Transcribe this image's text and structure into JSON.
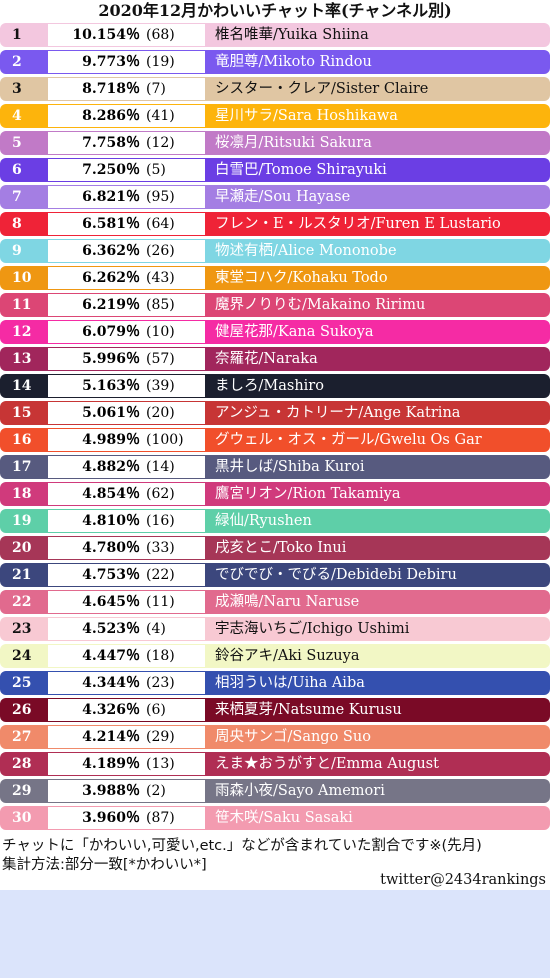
{
  "chart_data": {
    "type": "table",
    "title": "2020年12月かわいいチャット率(チャンネル別)",
    "columns": [
      "rank",
      "percent",
      "count",
      "name"
    ],
    "rows": [
      {
        "rank": "1",
        "percent": "10.154％",
        "count": "(68)",
        "name": "椎名唯華/Yuika Shiina",
        "bg": "#f3c7df",
        "fg": "#111111"
      },
      {
        "rank": "2",
        "percent": "9.773％",
        "count": "(19)",
        "name": "竜胆尊/Mikoto Rindou",
        "bg": "#7a59ef",
        "fg": "#ffffff"
      },
      {
        "rank": "3",
        "percent": "8.718％",
        "count": "(7)",
        "name": "シスター・クレア/Sister Claire",
        "bg": "#e0c6a3",
        "fg": "#111111"
      },
      {
        "rank": "4",
        "percent": "8.286％",
        "count": "(41)",
        "name": "星川サラ/Sara Hoshikawa",
        "bg": "#fdb40c",
        "fg": "#ffffff"
      },
      {
        "rank": "5",
        "percent": "7.758％",
        "count": "(12)",
        "name": "桜凛月/Ritsuki Sakura",
        "bg": "#c17ac7",
        "fg": "#ffffff"
      },
      {
        "rank": "6",
        "percent": "7.250％",
        "count": "(5)",
        "name": "白雪巴/Tomoe Shirayuki",
        "bg": "#6b3ee4",
        "fg": "#ffffff"
      },
      {
        "rank": "7",
        "percent": "6.821％",
        "count": "(95)",
        "name": "早瀬走/Sou Hayase",
        "bg": "#a47ee3",
        "fg": "#ffffff"
      },
      {
        "rank": "8",
        "percent": "6.581％",
        "count": "(64)",
        "name": "フレン・E・ルスタリオ/Furen E Lustario",
        "bg": "#ef2337",
        "fg": "#ffffff"
      },
      {
        "rank": "9",
        "percent": "6.362％",
        "count": "(26)",
        "name": "物述有栖/Alice Mononobe",
        "bg": "#7fd6e3",
        "fg": "#ffffff"
      },
      {
        "rank": "10",
        "percent": "6.262％",
        "count": "(43)",
        "name": "東堂コハク/Kohaku Todo",
        "bg": "#ef9712",
        "fg": "#ffffff"
      },
      {
        "rank": "11",
        "percent": "6.219％",
        "count": "(85)",
        "name": "魔界ノりりむ/Makaino Ririmu",
        "bg": "#dc4675",
        "fg": "#ffffff"
      },
      {
        "rank": "12",
        "percent": "6.079％",
        "count": "(10)",
        "name": "健屋花那/Kana Sukoya",
        "bg": "#f52ba4",
        "fg": "#ffffff"
      },
      {
        "rank": "13",
        "percent": "5.996％",
        "count": "(57)",
        "name": "奈羅花/Naraka",
        "bg": "#a1265c",
        "fg": "#ffffff"
      },
      {
        "rank": "14",
        "percent": "5.163％",
        "count": "(39)",
        "name": "ましろ/Mashiro",
        "bg": "#1b1f2e",
        "fg": "#ffffff"
      },
      {
        "rank": "15",
        "percent": "5.061％",
        "count": "(20)",
        "name": "アンジュ・カトリーナ/Ange Katrina",
        "bg": "#c73535",
        "fg": "#ffffff"
      },
      {
        "rank": "16",
        "percent": "4.989％",
        "count": "(100)",
        "name": "グウェル・オス・ガール/Gwelu Os Gar",
        "bg": "#f14f2b",
        "fg": "#ffffff"
      },
      {
        "rank": "17",
        "percent": "4.882％",
        "count": "(14)",
        "name": "黒井しば/Shiba Kuroi",
        "bg": "#575a7f",
        "fg": "#ffffff"
      },
      {
        "rank": "18",
        "percent": "4.854％",
        "count": "(62)",
        "name": "鷹宮リオン/Rion Takamiya",
        "bg": "#d03a7c",
        "fg": "#ffffff"
      },
      {
        "rank": "19",
        "percent": "4.810％",
        "count": "(16)",
        "name": "緑仙/Ryushen",
        "bg": "#5ecfa8",
        "fg": "#ffffff"
      },
      {
        "rank": "20",
        "percent": "4.780％",
        "count": "(33)",
        "name": "戌亥とこ/Toko Inui",
        "bg": "#a63657",
        "fg": "#ffffff"
      },
      {
        "rank": "21",
        "percent": "4.753％",
        "count": "(22)",
        "name": "でびでび・でびる/Debidebi Debiru",
        "bg": "#3c477d",
        "fg": "#ffffff"
      },
      {
        "rank": "22",
        "percent": "4.645％",
        "count": "(11)",
        "name": "成瀬鳴/Naru Naruse",
        "bg": "#e16a8e",
        "fg": "#ffffff"
      },
      {
        "rank": "23",
        "percent": "4.523％",
        "count": "(4)",
        "name": "宇志海いちご/Ichigo Ushimi",
        "bg": "#f8c9d3",
        "fg": "#111111"
      },
      {
        "rank": "24",
        "percent": "4.447％",
        "count": "(18)",
        "name": "鈴谷アキ/Aki Suzuya",
        "bg": "#f2f7c5",
        "fg": "#111111"
      },
      {
        "rank": "25",
        "percent": "4.344％",
        "count": "(23)",
        "name": "相羽ういは/Uiha Aiba",
        "bg": "#3450af",
        "fg": "#ffffff"
      },
      {
        "rank": "26",
        "percent": "4.326％",
        "count": "(6)",
        "name": "来栖夏芽/Natsume Kurusu",
        "bg": "#7a0a26",
        "fg": "#ffffff"
      },
      {
        "rank": "27",
        "percent": "4.214％",
        "count": "(29)",
        "name": "周央サンゴ/Sango Suo",
        "bg": "#f08a6a",
        "fg": "#ffffff"
      },
      {
        "rank": "28",
        "percent": "4.189％",
        "count": "(13)",
        "name": "えま★おうがすと/Emma August",
        "bg": "#b02e54",
        "fg": "#ffffff"
      },
      {
        "rank": "29",
        "percent": "3.988％",
        "count": "(2)",
        "name": "雨森小夜/Sayo Amemori",
        "bg": "#767587",
        "fg": "#ffffff"
      },
      {
        "rank": "30",
        "percent": "3.960％",
        "count": "(87)",
        "name": "笹木咲/Saku Sasaki",
        "bg": "#f39bb0",
        "fg": "#ffffff"
      }
    ]
  },
  "footer": {
    "note1": "チャットに「かわいい,可愛い,etc.」などが含まれていた割合です※(先月)",
    "note2": "集計方法:部分一致[*かわいい*]",
    "credit": "twitter@2434rankings"
  }
}
